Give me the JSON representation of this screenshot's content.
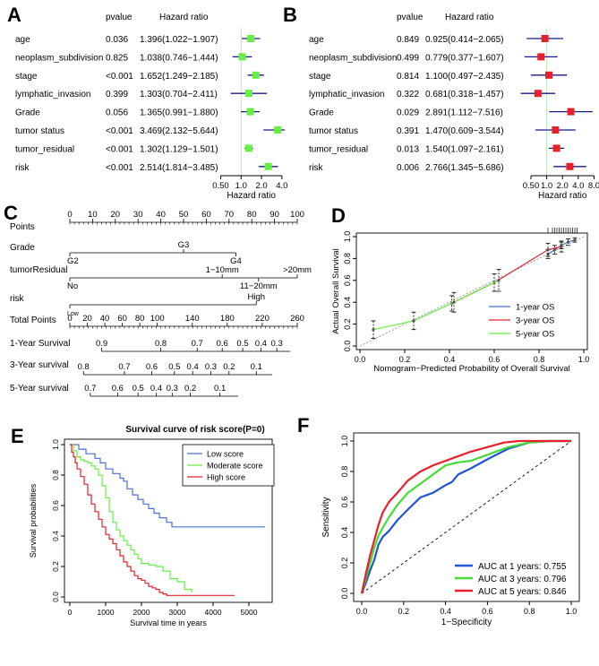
{
  "chart_data": [
    {
      "panel": "A",
      "type": "forest",
      "col_pvalue": "pvalue",
      "col_hr": "Hazard ratio",
      "xlabel": "Hazard ratio",
      "ticks": [
        0.5,
        1.0,
        2.0,
        4.0
      ],
      "tick_labels": [
        "0.50",
        "1.0",
        "2.0",
        "4.0"
      ],
      "xlim": [
        0.45,
        4.4
      ],
      "marker_color": "#66ee44",
      "rows": [
        {
          "label": "age",
          "pvalue": "0.036",
          "hr_text": "1.396(1.022−1.907)",
          "hr": 1.396,
          "lo": 1.022,
          "hi": 1.907
        },
        {
          "label": "neoplasm_subdivision",
          "pvalue": "0.825",
          "hr_text": "1.038(0.746−1.444)",
          "hr": 1.038,
          "lo": 0.746,
          "hi": 1.444
        },
        {
          "label": "stage",
          "pvalue": "<0.001",
          "hr_text": "1.652(1.249−2.185)",
          "hr": 1.652,
          "lo": 1.249,
          "hi": 2.185
        },
        {
          "label": "lymphatic_invasion",
          "pvalue": "0.399",
          "hr_text": "1.303(0.704−2.411)",
          "hr": 1.303,
          "lo": 0.704,
          "hi": 2.411
        },
        {
          "label": "Grade",
          "pvalue": "0.056",
          "hr_text": "1.365(0.991−1.880)",
          "hr": 1.365,
          "lo": 0.991,
          "hi": 1.88
        },
        {
          "label": "tumor status",
          "pvalue": "<0.001",
          "hr_text": "3.469(2.132−5.644)",
          "hr": 3.469,
          "lo": 2.132,
          "hi": 5.644
        },
        {
          "label": "tumor_residual",
          "pvalue": "<0.001",
          "hr_text": "1.302(1.129−1.501)",
          "hr": 1.302,
          "lo": 1.129,
          "hi": 1.501
        },
        {
          "label": "risk",
          "pvalue": "<0.001",
          "hr_text": "2.514(1.814−3.485)",
          "hr": 2.514,
          "lo": 1.814,
          "hi": 3.485
        }
      ]
    },
    {
      "panel": "B",
      "type": "forest",
      "col_pvalue": "pvalue",
      "col_hr": "Hazard ratio",
      "xlabel": "Hazard ratio",
      "ticks": [
        0.5,
        1.0,
        2.0,
        4.0,
        8.0
      ],
      "tick_labels": [
        "0.50",
        "1.0",
        "2.0",
        "4.0",
        "8.0"
      ],
      "xlim": [
        0.3,
        8.5
      ],
      "marker_color": "#e8202a",
      "rows": [
        {
          "label": "age",
          "pvalue": "0.849",
          "hr_text": "0.925(0.414−2.065)",
          "hr": 0.925,
          "lo": 0.414,
          "hi": 2.065
        },
        {
          "label": "neoplasm_subdivision",
          "pvalue": "0.499",
          "hr_text": "0.779(0.377−1.607)",
          "hr": 0.779,
          "lo": 0.377,
          "hi": 1.607
        },
        {
          "label": "stage",
          "pvalue": "0.814",
          "hr_text": "1.100(0.497−2.435)",
          "hr": 1.1,
          "lo": 0.497,
          "hi": 2.435
        },
        {
          "label": "lymphatic_invasion",
          "pvalue": "0.322",
          "hr_text": "0.681(0.318−1.457)",
          "hr": 0.681,
          "lo": 0.318,
          "hi": 1.457
        },
        {
          "label": "Grade",
          "pvalue": "0.029",
          "hr_text": "2.891(1.112−7.516)",
          "hr": 2.891,
          "lo": 1.112,
          "hi": 7.516
        },
        {
          "label": "tumor status",
          "pvalue": "0.391",
          "hr_text": "1.470(0.609−3.544)",
          "hr": 1.47,
          "lo": 0.609,
          "hi": 3.544
        },
        {
          "label": "tumor_residual",
          "pvalue": "0.013",
          "hr_text": "1.540(1.097−2.161)",
          "hr": 1.54,
          "lo": 1.097,
          "hi": 2.161
        },
        {
          "label": "risk",
          "pvalue": "0.006",
          "hr_text": "2.766(1.345−5.686)",
          "hr": 2.766,
          "lo": 1.345,
          "hi": 5.686
        }
      ]
    },
    {
      "panel": "C",
      "type": "nomogram",
      "scales": [
        {
          "label": "Points",
          "from": 0,
          "to": 100,
          "ticks": [
            {
              "v": 0,
              "t": "0"
            },
            {
              "v": 10,
              "t": "10"
            },
            {
              "v": 20,
              "t": "20"
            },
            {
              "v": 30,
              "t": "30"
            },
            {
              "v": 40,
              "t": "40"
            },
            {
              "v": 50,
              "t": "50"
            },
            {
              "v": 60,
              "t": "60"
            },
            {
              "v": 70,
              "t": "70"
            },
            {
              "v": 80,
              "t": "80"
            },
            {
              "v": 90,
              "t": "90"
            },
            {
              "v": 100,
              "t": "100"
            }
          ],
          "minor": true
        },
        {
          "label": "Grade",
          "from": 0,
          "to": 73,
          "ticks": [
            {
              "v": 0,
              "t": "G2",
              "pos": "below"
            },
            {
              "v": 50,
              "t": "G3",
              "pos": "above"
            },
            {
              "v": 73,
              "t": "G4",
              "pos": "below"
            }
          ]
        },
        {
          "label": "tumorResidual",
          "from": 0,
          "to": 100,
          "ticks": [
            {
              "v": 0,
              "t": "No",
              "pos": "below"
            },
            {
              "v": 67,
              "t": "1−10mm",
              "pos": "above"
            },
            {
              "v": 83,
              "t": "11−20mm",
              "pos": "below"
            },
            {
              "v": 100,
              "t": ">20mm",
              "pos": "above"
            }
          ]
        },
        {
          "label": "risk",
          "from": 0,
          "to": 82,
          "ticks": [
            {
              "v": 0,
              "t": "Low",
              "pos": "below",
              "small": true
            },
            {
              "v": 82,
              "t": "High",
              "pos": "above"
            }
          ]
        },
        {
          "label": "Total Points",
          "from": 0,
          "to": 100,
          "ticks": [
            {
              "v": 0,
              "t": "0"
            },
            {
              "v": 7.69,
              "t": "20"
            },
            {
              "v": 15.38,
              "t": "40"
            },
            {
              "v": 23.08,
              "t": "60"
            },
            {
              "v": 30.77,
              "t": "80"
            },
            {
              "v": 38.46,
              "t": "100"
            },
            {
              "v": 53.85,
              "t": "140"
            },
            {
              "v": 69.23,
              "t": "180"
            },
            {
              "v": 84.62,
              "t": "220"
            },
            {
              "v": 100,
              "t": "260"
            }
          ],
          "minor": true
        },
        {
          "label": "1-Year Survival",
          "from": 14,
          "to": 97,
          "ticks": [
            {
              "v": 14,
              "t": "0.9"
            },
            {
              "v": 40,
              "t": "0.8"
            },
            {
              "v": 56,
              "t": "0.7"
            },
            {
              "v": 67,
              "t": "0.6"
            },
            {
              "v": 76,
              "t": "0.5"
            },
            {
              "v": 84,
              "t": "0.4"
            },
            {
              "v": 91,
              "t": "0.3"
            }
          ]
        },
        {
          "label": "3-Year survival",
          "from": 6,
          "to": 89,
          "ticks": [
            {
              "v": 6,
              "t": "0.8"
            },
            {
              "v": 24,
              "t": "0.7"
            },
            {
              "v": 36,
              "t": "0.6"
            },
            {
              "v": 46,
              "t": "0.5"
            },
            {
              "v": 54,
              "t": "0.4"
            },
            {
              "v": 62,
              "t": "0.3"
            },
            {
              "v": 70,
              "t": "0.2"
            },
            {
              "v": 82,
              "t": "0.1"
            }
          ]
        },
        {
          "label": "5-Year survival",
          "from": 9,
          "to": 74,
          "ticks": [
            {
              "v": 9,
              "t": "0.7"
            },
            {
              "v": 21,
              "t": "0.6"
            },
            {
              "v": 30,
              "t": "0.5"
            },
            {
              "v": 38,
              "t": "0.4"
            },
            {
              "v": 45,
              "t": "0.3"
            },
            {
              "v": 53,
              "t": "0.2"
            },
            {
              "v": 66,
              "t": "0.1"
            }
          ]
        }
      ]
    },
    {
      "panel": "D",
      "type": "line",
      "xlabel": "Nomogram−Predicted Probability of Overall Survival",
      "ylabel": "Actual Overall Survival",
      "xlim": [
        0,
        1
      ],
      "ylim": [
        0,
        1
      ],
      "xticks": [
        {
          "v": 0,
          "t": "0.0"
        },
        {
          "v": 0.2,
          "t": "0.2"
        },
        {
          "v": 0.4,
          "t": "0.4"
        },
        {
          "v": 0.6,
          "t": "0.6"
        },
        {
          "v": 0.8,
          "t": "0.8"
        },
        {
          "v": 1,
          "t": "1.0"
        }
      ],
      "yticks": [
        {
          "v": 0,
          "t": "0.0"
        },
        {
          "v": 0.2,
          "t": "0.2"
        },
        {
          "v": 0.4,
          "t": "0.4"
        },
        {
          "v": 0.6,
          "t": "0.6"
        },
        {
          "v": 0.8,
          "t": "0.8"
        },
        {
          "v": 1,
          "t": "1.0"
        }
      ],
      "series": [
        {
          "name": "1-year OS",
          "color": "#4a6fd8",
          "x": [
            0.84,
            0.87,
            0.9,
            0.93,
            0.96
          ],
          "y": [
            0.84,
            0.88,
            0.92,
            0.95,
            0.97
          ],
          "err": [
            0.04,
            0.04,
            0.03,
            0.03,
            0.02
          ]
        },
        {
          "name": "3-year OS",
          "color": "#e8202a",
          "x": [
            0.41,
            0.6,
            0.84,
            0.9
          ],
          "y": [
            0.39,
            0.58,
            0.88,
            0.91
          ],
          "err": [
            0.07,
            0.08,
            0.06,
            0.05
          ]
        },
        {
          "name": "5-year OS",
          "color": "#66ee44",
          "x": [
            0.06,
            0.24,
            0.42,
            0.62
          ],
          "y": [
            0.15,
            0.23,
            0.4,
            0.6
          ],
          "err": [
            0.08,
            0.08,
            0.09,
            0.1
          ]
        }
      ],
      "rug_x": [
        0.84,
        0.86,
        0.87,
        0.88,
        0.89,
        0.9,
        0.91,
        0.92,
        0.93,
        0.94,
        0.95,
        0.96,
        0.97
      ]
    },
    {
      "panel": "E",
      "type": "line",
      "step": true,
      "title": "Survival curve of risk score(P=0)",
      "xlabel": "Survival time in years",
      "ylabel": "Survival probabilities",
      "xlim": [
        0,
        5500
      ],
      "ylim": [
        0,
        1
      ],
      "xticks": [
        {
          "v": 0,
          "t": "0"
        },
        {
          "v": 1000,
          "t": "1000"
        },
        {
          "v": 2000,
          "t": "2000"
        },
        {
          "v": 3000,
          "t": "3000"
        },
        {
          "v": 4000,
          "t": "4000"
        },
        {
          "v": 5000,
          "t": "5000"
        }
      ],
      "yticks": [
        {
          "v": 0,
          "t": "0.0"
        },
        {
          "v": 0.2,
          "t": "0.2"
        },
        {
          "v": 0.4,
          "t": "0.4"
        },
        {
          "v": 0.6,
          "t": "0.6"
        },
        {
          "v": 0.8,
          "t": "0.8"
        },
        {
          "v": 1,
          "t": "1.0"
        }
      ],
      "series": [
        {
          "name": "Low score",
          "color": "#4a6fd8",
          "x": [
            0,
            250,
            450,
            700,
            850,
            1000,
            1200,
            1400,
            1500,
            1600,
            1750,
            1900,
            2050,
            2200,
            2350,
            2500,
            2700,
            2850,
            5450
          ],
          "y": [
            1,
            0.97,
            0.94,
            0.91,
            0.88,
            0.84,
            0.81,
            0.78,
            0.76,
            0.71,
            0.67,
            0.64,
            0.61,
            0.58,
            0.55,
            0.52,
            0.49,
            0.46,
            0.46
          ]
        },
        {
          "name": "Moderate score",
          "color": "#66ee44",
          "x": [
            0,
            100,
            200,
            300,
            400,
            500,
            600,
            700,
            800,
            900,
            1000,
            1100,
            1200,
            1300,
            1400,
            1500,
            1600,
            1700,
            1800,
            1900,
            2000,
            2200,
            2400,
            2600,
            2800,
            3000,
            3200,
            3400
          ],
          "y": [
            1,
            0.96,
            0.92,
            0.9,
            0.89,
            0.88,
            0.86,
            0.84,
            0.8,
            0.73,
            0.65,
            0.56,
            0.49,
            0.44,
            0.4,
            0.37,
            0.34,
            0.31,
            0.28,
            0.25,
            0.22,
            0.21,
            0.2,
            0.17,
            0.12,
            0.1,
            0.05,
            0.03
          ]
        },
        {
          "name": "High score",
          "color": "#e8202a",
          "x": [
            0,
            50,
            100,
            150,
            200,
            300,
            400,
            500,
            600,
            700,
            800,
            900,
            1000,
            1100,
            1200,
            1300,
            1400,
            1500,
            1600,
            1700,
            1800,
            1900,
            2000,
            2100,
            2200,
            2300,
            2400,
            2500,
            2600,
            2700,
            2800,
            4600
          ],
          "y": [
            1,
            0.95,
            0.92,
            0.88,
            0.84,
            0.79,
            0.74,
            0.67,
            0.61,
            0.56,
            0.51,
            0.46,
            0.41,
            0.38,
            0.35,
            0.31,
            0.27,
            0.23,
            0.2,
            0.17,
            0.14,
            0.12,
            0.11,
            0.09,
            0.07,
            0.06,
            0.05,
            0.03,
            0.02,
            0.01,
            0.01,
            0.01
          ]
        }
      ]
    },
    {
      "panel": "F",
      "type": "line",
      "xlabel": "1−Specificity",
      "ylabel": "Sensitivity",
      "xlim": [
        0,
        1
      ],
      "ylim": [
        0,
        1
      ],
      "xticks": [
        {
          "v": 0,
          "t": "0.0"
        },
        {
          "v": 0.2,
          "t": "0.2"
        },
        {
          "v": 0.4,
          "t": "0.4"
        },
        {
          "v": 0.6,
          "t": "0.6"
        },
        {
          "v": 0.8,
          "t": "0.8"
        },
        {
          "v": 1,
          "t": "1.0"
        }
      ],
      "yticks": [
        {
          "v": 0,
          "t": "0.0"
        },
        {
          "v": 0.2,
          "t": "0.2"
        },
        {
          "v": 0.4,
          "t": "0.4"
        },
        {
          "v": 0.6,
          "t": "0.6"
        },
        {
          "v": 0.8,
          "t": "0.8"
        },
        {
          "v": 1,
          "t": "1.0"
        }
      ],
      "series": [
        {
          "name": "AUC at 1 years: 0.755",
          "color": "#1f55d6",
          "x": [
            0,
            0.02,
            0.04,
            0.06,
            0.08,
            0.1,
            0.13,
            0.17,
            0.22,
            0.28,
            0.34,
            0.4,
            0.43,
            0.46,
            0.52,
            0.6,
            0.7,
            0.8,
            0.9,
            1
          ],
          "y": [
            0,
            0.07,
            0.15,
            0.22,
            0.32,
            0.37,
            0.41,
            0.48,
            0.55,
            0.63,
            0.66,
            0.71,
            0.73,
            0.78,
            0.82,
            0.88,
            0.95,
            0.99,
            1,
            1
          ]
        },
        {
          "name": "AUC at 3 years: 0.796",
          "color": "#44dd33",
          "x": [
            0,
            0.02,
            0.04,
            0.06,
            0.08,
            0.1,
            0.13,
            0.17,
            0.22,
            0.28,
            0.34,
            0.4,
            0.46,
            0.52,
            0.6,
            0.7,
            0.8,
            0.9,
            1
          ],
          "y": [
            0,
            0.1,
            0.2,
            0.3,
            0.38,
            0.43,
            0.5,
            0.58,
            0.66,
            0.72,
            0.78,
            0.84,
            0.86,
            0.87,
            0.91,
            0.96,
            0.99,
            1,
            1
          ]
        },
        {
          "name": "AUC at 5 years: 0.846",
          "color": "#e8202a",
          "x": [
            0,
            0.02,
            0.04,
            0.06,
            0.08,
            0.1,
            0.13,
            0.17,
            0.22,
            0.28,
            0.34,
            0.4,
            0.46,
            0.52,
            0.6,
            0.68,
            0.75,
            0.82,
            0.9,
            1
          ],
          "y": [
            0,
            0.13,
            0.25,
            0.35,
            0.45,
            0.53,
            0.6,
            0.66,
            0.74,
            0.8,
            0.84,
            0.87,
            0.9,
            0.93,
            0.96,
            0.99,
            1,
            1,
            1,
            1
          ]
        }
      ]
    }
  ],
  "panel_letters": {
    "a": "A",
    "b": "B",
    "c": "C",
    "d": "D",
    "e": "E",
    "f": "F"
  }
}
